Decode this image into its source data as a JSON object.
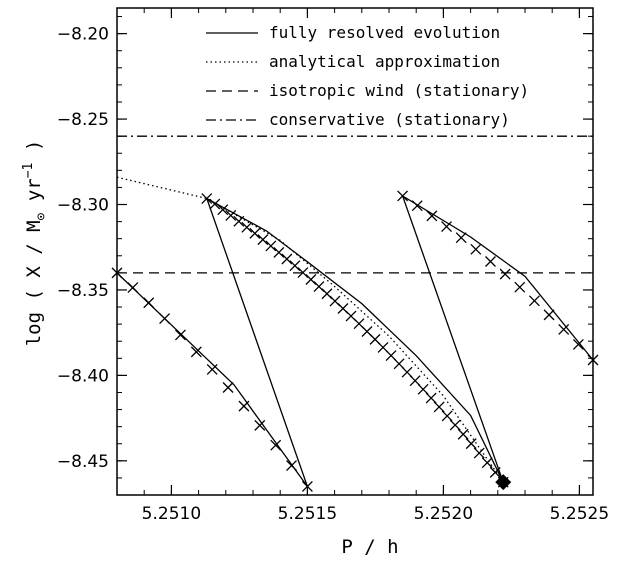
{
  "chart_data": {
    "type": "line",
    "title": "",
    "xlabel": "P / h",
    "ylabel_parts": {
      "prefix": "log ( X / M",
      "sub": "⊙",
      "mid": " yr",
      "sup": "−1",
      "suffix": " )"
    },
    "xlim": [
      5.2508,
      5.25255
    ],
    "ylim": [
      -8.47,
      -8.185
    ],
    "x_ticks": [
      5.251,
      5.2515,
      5.252,
      5.2525
    ],
    "x_tick_labels": [
      "5.2510",
      "5.2515",
      "5.2520",
      "5.2525"
    ],
    "y_ticks": [
      -8.2,
      -8.25,
      -8.3,
      -8.35,
      -8.4,
      -8.45
    ],
    "y_tick_labels": [
      "−8.20",
      "−8.25",
      "−8.30",
      "−8.35",
      "−8.40",
      "−8.45"
    ],
    "legend": [
      {
        "label": "fully resolved evolution",
        "dash": "solid"
      },
      {
        "label": "analytical approximation",
        "dash": "dotted"
      },
      {
        "label": "isotropic wind (stationary)",
        "dash": "dashed"
      },
      {
        "label": "conservative (stationary)",
        "dash": "dashdot"
      }
    ],
    "legend_placement": "top",
    "series": [
      {
        "kind": "solid",
        "points": [
          [
            5.2508,
            -8.34
          ],
          [
            5.25123,
            -8.4055
          ],
          [
            5.2515,
            -8.465
          ],
          [
            5.25113,
            -8.2965
          ],
          [
            5.25135,
            -8.3155
          ],
          [
            5.2515,
            -8.3335
          ],
          [
            5.2517,
            -8.358
          ],
          [
            5.2519,
            -8.3885
          ],
          [
            5.2521,
            -8.4235
          ],
          [
            5.25222,
            -8.4625
          ],
          [
            5.25185,
            -8.295
          ],
          [
            5.2521,
            -8.319
          ],
          [
            5.2523,
            -8.342
          ],
          [
            5.25255,
            -8.391
          ]
        ]
      },
      {
        "kind": "dotted",
        "points": [
          [
            5.2508,
            -8.284
          ],
          [
            5.25113,
            -8.2965
          ],
          [
            5.2514,
            -8.321
          ],
          [
            5.2516,
            -8.348
          ],
          [
            5.2518,
            -8.377
          ],
          [
            5.252,
            -8.412
          ],
          [
            5.25222,
            -8.4625
          ]
        ]
      },
      {
        "kind": "dashed",
        "points": [
          [
            5.2508,
            -8.34
          ],
          [
            5.25255,
            -8.34
          ]
        ]
      },
      {
        "kind": "dashdot",
        "points": [
          [
            5.2508,
            -8.26
          ],
          [
            5.25255,
            -8.26
          ]
        ]
      }
    ],
    "markers": [
      {
        "segment": [
          [
            5.2508,
            -8.34
          ],
          [
            5.2515,
            -8.465
          ]
        ],
        "curve": 0.006,
        "count": 13
      },
      {
        "segment": [
          [
            5.25113,
            -8.2965
          ],
          [
            5.25222,
            -8.4625
          ]
        ],
        "curve": 0.012,
        "count": 38
      },
      {
        "segment": [
          [
            5.25185,
            -8.295
          ],
          [
            5.25255,
            -8.391
          ]
        ],
        "curve": 0.006,
        "count": 14
      }
    ],
    "diamond": [
      5.25222,
      -8.4625
    ]
  }
}
